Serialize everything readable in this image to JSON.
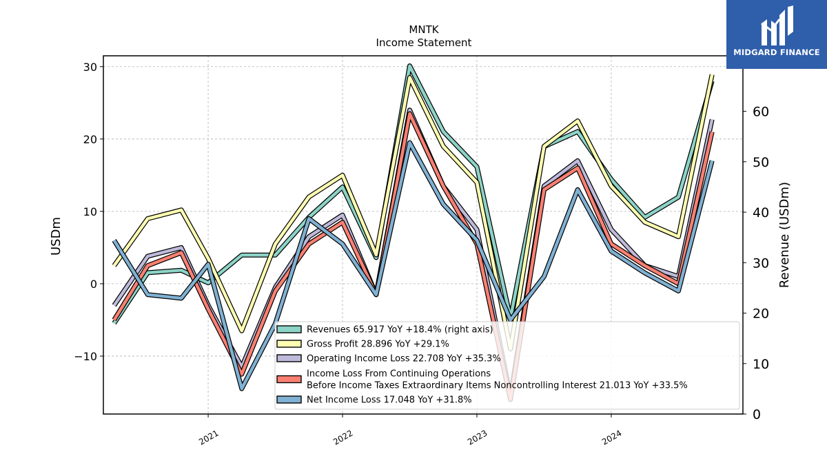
{
  "brand": {
    "name": "MIDGARD FINANCE",
    "color": "#2f5eab"
  },
  "chart_data": {
    "type": "line",
    "title": "MNTK",
    "subtitle": "Income Statement",
    "ylabel": "USDm",
    "ylabel_right": "Revenue (USDm)",
    "ylim": [
      -18,
      31.5
    ],
    "ylim_right": [
      0,
      71
    ],
    "yticks": [
      -10,
      0,
      10,
      20,
      30
    ],
    "yticks_right": [
      0,
      10,
      20,
      30,
      40,
      50,
      60
    ],
    "xlim": [
      2020.22,
      2024.98
    ],
    "xticks": [
      "2021",
      "2022",
      "2023",
      "2024"
    ],
    "grid": true,
    "legend_position": "lower-right",
    "x": [
      2020.3,
      2020.55,
      2020.8,
      2021.0,
      2021.25,
      2021.5,
      2021.75,
      2022.0,
      2022.25,
      2022.5,
      2022.75,
      2023.0,
      2023.25,
      2023.5,
      2023.75,
      2024.0,
      2024.25,
      2024.5,
      2024.75
    ],
    "series": [
      {
        "name": "Revenues",
        "legend": "Revenues  65.917 YoY +18.4% (right axis)",
        "axis": "right",
        "color": "#8dd3c7",
        "values": [
          18,
          28,
          28.5,
          26,
          31.5,
          31.5,
          39,
          45,
          31,
          69,
          56,
          49,
          19,
          53,
          56,
          46.5,
          39,
          43,
          66
        ]
      },
      {
        "name": "Gross Profit",
        "legend": "Gross Profit  28.896 YoY +29.1%",
        "axis": "left",
        "color": "#ffffb3",
        "values": [
          2.5,
          9,
          10.2,
          3.5,
          -6.5,
          5.5,
          12,
          15,
          4,
          28.5,
          19,
          14,
          -9,
          19,
          22.5,
          13.5,
          8.5,
          6.5,
          28.9
        ]
      },
      {
        "name": "Operating Income Loss",
        "legend": "Operating Income Loss  22.708 YoY +35.3%",
        "axis": "left",
        "color": "#bebada",
        "values": [
          -3,
          3.8,
          5,
          -3,
          -11.5,
          -0.5,
          6.5,
          9.5,
          -1.5,
          24,
          13.5,
          7.5,
          -15.5,
          13.5,
          17,
          7.5,
          2.5,
          1,
          22.7
        ]
      },
      {
        "name": "Income Loss From Continuing Operations Before Income Taxes Extraordinary Items Noncontrolling Interest",
        "legend_line1": "Income Loss From Continuing Operations",
        "legend_line2": "Before Income Taxes Extraordinary Items Noncontrolling Interest  21.013 YoY +33.5%",
        "axis": "left",
        "color": "#fb8072",
        "values": [
          -5,
          2.5,
          4.3,
          -3.5,
          -12.5,
          -1,
          5.5,
          8.5,
          -1.5,
          23.5,
          13.5,
          5.5,
          -16,
          13,
          16,
          5.5,
          2.5,
          0,
          21
        ]
      },
      {
        "name": "Net Income Loss",
        "legend": "Net Income Loss  17.048 YoY +31.8%",
        "axis": "left",
        "color": "#80b1d3",
        "values": [
          6,
          -1.5,
          -2,
          2.7,
          -14.5,
          -5.5,
          9,
          5.5,
          -1.5,
          19.5,
          11,
          6,
          -5,
          1,
          13,
          4.5,
          1.5,
          -1,
          17
        ]
      }
    ]
  }
}
